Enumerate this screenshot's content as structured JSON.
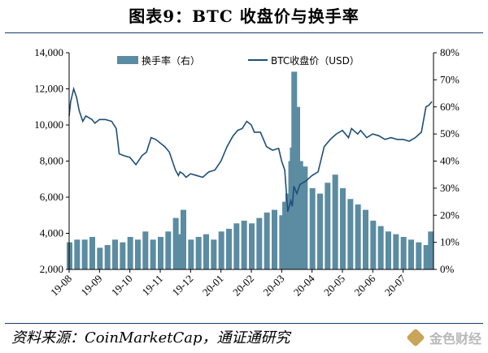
{
  "figure": {
    "title": "图表9：BTC 收盘价与换手率",
    "source": "资料来源：CoinMarketCap，通证通研究",
    "logo_text": "金色财经"
  },
  "colors": {
    "price_line": "#1f4e79",
    "turnover_bar": "#5b8ca1",
    "rule": "#1a3c6e"
  },
  "chart_data": {
    "type": "bar+line",
    "x_tick_labels": [
      "19-08",
      "19-09",
      "19-10",
      "19-11",
      "19-12",
      "20-01",
      "20-02",
      "20-03",
      "20-04",
      "20-05",
      "20-06",
      "20-07"
    ],
    "y_left": {
      "range": [
        2000,
        14000
      ],
      "ticks": [
        "2,000",
        "4,000",
        "6,000",
        "8,000",
        "10,000",
        "12,000",
        "14,000"
      ],
      "tick_values": [
        2000,
        4000,
        6000,
        8000,
        10000,
        12000,
        14000
      ]
    },
    "y_right": {
      "range": [
        0,
        80
      ],
      "ticks": [
        "0%",
        "10%",
        "20%",
        "30%",
        "40%",
        "50%",
        "60%",
        "70%",
        "80%"
      ],
      "tick_values": [
        0,
        10,
        20,
        30,
        40,
        50,
        60,
        70,
        80
      ]
    },
    "legend": {
      "placement": "top",
      "items": [
        "换手率（右）",
        "BTC收盘价（USD）"
      ]
    },
    "series": [
      {
        "name": "换手率（右）",
        "type": "bar",
        "axis": "right",
        "unit": "%",
        "x_month_index": [
          0.0,
          0.25,
          0.5,
          0.75,
          1.0,
          1.25,
          1.5,
          1.75,
          2.0,
          2.25,
          2.5,
          2.75,
          3.0,
          3.25,
          3.5,
          3.65,
          3.75,
          4.0,
          4.25,
          4.5,
          4.75,
          5.0,
          5.25,
          5.5,
          5.75,
          6.0,
          6.25,
          6.5,
          6.75,
          7.0,
          7.1,
          7.2,
          7.3,
          7.35,
          7.4,
          7.5,
          7.6,
          7.75,
          8.0,
          8.25,
          8.5,
          8.75,
          9.0,
          9.25,
          9.5,
          9.75,
          10.0,
          10.25,
          10.5,
          10.75,
          11.0,
          11.25,
          11.5,
          11.75,
          11.9
        ],
        "values": [
          10,
          11,
          11,
          12,
          8,
          9,
          11,
          10,
          12,
          11,
          14,
          11,
          12,
          14,
          19,
          13,
          22,
          11,
          12,
          13,
          11,
          14,
          15,
          17,
          18,
          17,
          19,
          21,
          22,
          20,
          25,
          28,
          40,
          45,
          73,
          60,
          40,
          38,
          30,
          28,
          32,
          35,
          30,
          26,
          24,
          22,
          18,
          16,
          14,
          13,
          12,
          11,
          10,
          9,
          14
        ]
      },
      {
        "name": "BTC收盘价（USD）",
        "type": "line",
        "axis": "left",
        "unit": "USD",
        "x_month_index": [
          0.0,
          0.05,
          0.15,
          0.25,
          0.33,
          0.45,
          0.55,
          0.65,
          0.75,
          0.85,
          1.0,
          1.2,
          1.4,
          1.55,
          1.65,
          1.8,
          2.0,
          2.2,
          2.4,
          2.55,
          2.7,
          2.85,
          3.0,
          3.15,
          3.3,
          3.5,
          3.6,
          3.65,
          3.75,
          3.85,
          4.0,
          4.2,
          4.4,
          4.6,
          4.8,
          5.0,
          5.2,
          5.4,
          5.55,
          5.7,
          5.85,
          6.0,
          6.1,
          6.3,
          6.5,
          6.7,
          6.9,
          7.0,
          7.1,
          7.2,
          7.3,
          7.35,
          7.4,
          7.5,
          7.6,
          7.7,
          7.8,
          8.0,
          8.2,
          8.4,
          8.6,
          8.8,
          9.0,
          9.2,
          9.3,
          9.5,
          9.6,
          9.7,
          9.8,
          10.0,
          10.2,
          10.4,
          10.6,
          10.8,
          11.0,
          11.2,
          11.4,
          11.6,
          11.75,
          11.85,
          11.95
        ],
        "values": [
          10500,
          11300,
          12000,
          11500,
          10800,
          10200,
          10500,
          10400,
          10300,
          10100,
          10300,
          10300,
          10200,
          9800,
          8400,
          8300,
          8200,
          7800,
          8300,
          8500,
          9300,
          9200,
          9000,
          8800,
          8500,
          7500,
          7200,
          7400,
          7300,
          7100,
          7300,
          7200,
          7100,
          7400,
          7500,
          8000,
          8800,
          9400,
          9700,
          9800,
          10200,
          10000,
          9600,
          9600,
          8800,
          8600,
          8700,
          8000,
          7500,
          5200,
          5800,
          5500,
          6600,
          6200,
          6700,
          6800,
          6900,
          7200,
          7400,
          8800,
          9200,
          9500,
          9700,
          9300,
          9800,
          9500,
          9700,
          9500,
          9300,
          9500,
          9400,
          9200,
          9300,
          9200,
          9200,
          9100,
          9300,
          9600,
          11000,
          11100,
          11300
        ]
      }
    ]
  }
}
